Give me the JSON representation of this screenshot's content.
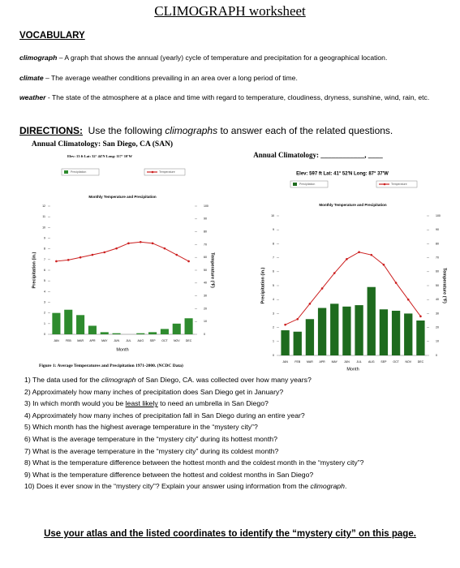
{
  "header": {
    "title": "CLIMOGRAPH worksheet"
  },
  "vocabulary": {
    "heading": "VOCABULARY",
    "terms": [
      {
        "term": "climograph",
        "definition": " – A graph that shows the annual (yearly) cycle of temperature and precipitation for a geographical location."
      },
      {
        "term": "climate",
        "definition": " – The average weather conditions prevailing in an area over a long period of time."
      },
      {
        "term": "weather",
        "definition": " - The state of the atmosphere at a place and time with regard to temperature, cloudiness, dryness, sunshine, wind, rain, etc."
      }
    ]
  },
  "directions": {
    "label": "DIRECTIONS:",
    "text_before": "Use the following",
    "emphasis": "climographs",
    "text_after": "to answer each of the related questions."
  },
  "figure_caption": "Figure 1: Average Temperatures and Precipitation 1971-2000. (NCDC Data)",
  "questions": [
    [
      "1)  The data used for the ",
      "climograph",
      " of San Diego, CA. was collected over how many years?"
    ],
    [
      "2)  Approximately how many inches of precipitation does San Diego get in January?"
    ],
    [
      "3)  In which month would you be ",
      "least likely",
      " to need an umbrella in San Diego?"
    ],
    [
      "4)  Approximately how many inches of precipitation fall in San Diego during an entire year?"
    ],
    [
      "5)  Which month has the highest average temperature in the “mystery city”?"
    ],
    [
      "6)  What is the average temperature in the “mystery city” during its hottest month?"
    ],
    [
      "7)  What is the average temperature in the “mystery city” during its coldest month?"
    ],
    [
      "8)  What is the temperature difference between the hottest month and the coldest month in the “mystery city”?"
    ],
    [
      "9)  What is the temperature difference between the hottest and coldest months in San Diego?"
    ],
    [
      "10) Does it ever snow in the “mystery city”? Explain your answer using information from the ",
      "climograph",
      "."
    ]
  ],
  "footer": "Use your atlas and the listed coordinates to identify the “mystery city” on this page.",
  "chart_data": [
    {
      "type": "combo",
      "title": "Annual Climatology: San Diego, CA (SAN)",
      "subtitle": "Elev: 13 ft     Lat: 32° 44'N     Long: 117° 10'W",
      "plot_title": "Monthly Temperature and Precipitation",
      "xlabel": "Month",
      "ylabel": "Precipitation (in.)",
      "y2label": "Temperature (°F)",
      "categories": [
        "JAN",
        "FEB",
        "MAR",
        "APR",
        "MAY",
        "JUN",
        "JUL",
        "AUG",
        "SEP",
        "OCT",
        "NOV",
        "DEC"
      ],
      "series": [
        {
          "name": "Precipitation",
          "color": "#2e8b2e",
          "values": [
            2.0,
            2.3,
            1.8,
            0.8,
            0.2,
            0.1,
            0.0,
            0.1,
            0.2,
            0.5,
            1.0,
            1.5
          ]
        },
        {
          "name": "Temperature",
          "color": "#cc1f1f",
          "axis": "y2",
          "values": [
            57,
            58,
            60,
            62,
            64,
            67,
            71,
            72,
            71,
            67,
            62,
            57
          ]
        }
      ],
      "ylim": [
        0,
        12
      ],
      "yticks": [
        0,
        1,
        2,
        3,
        4,
        5,
        6,
        7,
        8,
        9,
        10,
        11,
        12
      ],
      "y2lim": [
        0,
        100
      ],
      "y2ticks": [
        0,
        10,
        20,
        30,
        40,
        50,
        60,
        70,
        80,
        90,
        100
      ]
    },
    {
      "type": "combo",
      "title": "Annual Climatology: ____________, ____",
      "subtitle": "Elev:  597 ft    Lat:  41° 52'N    Long:  87° 37'W",
      "plot_title": "Monthly Temperature and Precipitation",
      "xlabel": "Month",
      "ylabel": "Precipitation (in.)",
      "y2label": "Temperature (°F)",
      "categories": [
        "JAN",
        "FEB",
        "MAR",
        "APR",
        "MAY",
        "JUN",
        "JUL",
        "AUG",
        "SEP",
        "OCT",
        "NOV",
        "DEC"
      ],
      "series": [
        {
          "name": "Precipitation",
          "color": "#1e6b1e",
          "values": [
            1.8,
            1.7,
            2.6,
            3.4,
            3.7,
            3.5,
            3.6,
            4.9,
            3.3,
            3.2,
            3.0,
            2.5
          ]
        },
        {
          "name": "Temperature",
          "color": "#cc1f1f",
          "axis": "y2",
          "values": [
            22,
            26,
            37,
            48,
            59,
            69,
            74,
            72,
            65,
            52,
            40,
            28
          ]
        }
      ],
      "ylim": [
        0,
        10
      ],
      "yticks": [
        0,
        1,
        2,
        3,
        4,
        5,
        6,
        7,
        8,
        9,
        10
      ],
      "y2lim": [
        0,
        100
      ],
      "y2ticks": [
        0,
        10,
        20,
        30,
        40,
        50,
        60,
        70,
        80,
        90,
        100
      ]
    }
  ]
}
